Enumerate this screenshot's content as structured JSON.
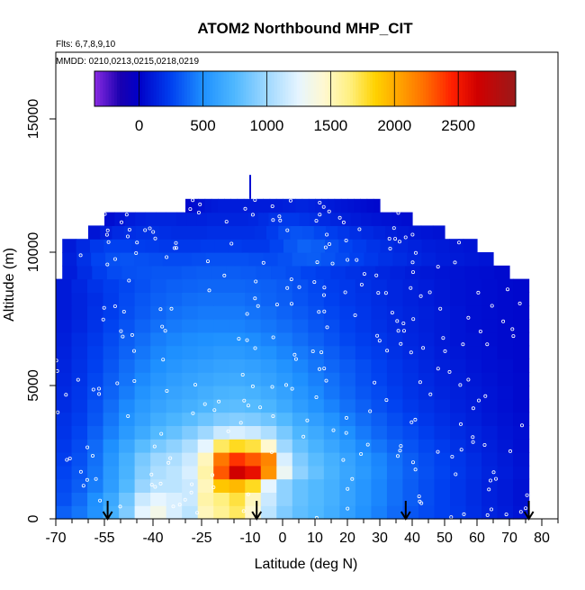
{
  "chart_data": {
    "type": "heatmap",
    "title": "ATOM2 Northbound MHP_CIT",
    "subtitle_flights": "Flts: 6,7,8,9,10",
    "subtitle_dates": "MMDD: 0210,0213,0215,0218,0219",
    "xlabel": "Latitude (deg N)",
    "ylabel": "Altitude (m)",
    "xlim": [
      -70,
      85
    ],
    "ylim": [
      0,
      17500
    ],
    "x_ticks_major": [
      -70,
      -55,
      -40,
      -25,
      -10,
      0,
      10,
      20,
      30,
      40,
      50,
      60,
      70,
      80
    ],
    "x_ticks_minor": [
      -65,
      -60,
      -50,
      -45,
      -35,
      -30,
      -20,
      -15,
      -5,
      5,
      15,
      25,
      35,
      45,
      55,
      65,
      75,
      85
    ],
    "y_ticks": [
      0,
      5000,
      10000,
      15000
    ],
    "colorbar": {
      "min": -350,
      "max": 2950,
      "ticks": [
        0,
        500,
        1000,
        1500,
        2000,
        2500
      ],
      "stops": [
        {
          "v": -350,
          "color": "#8a2be2"
        },
        {
          "v": -150,
          "color": "#1a00b0"
        },
        {
          "v": 0,
          "color": "#0000c8"
        },
        {
          "v": 250,
          "color": "#0040f0"
        },
        {
          "v": 500,
          "color": "#1e90ff"
        },
        {
          "v": 750,
          "color": "#4fb8ff"
        },
        {
          "v": 1000,
          "color": "#9fd8ff"
        },
        {
          "v": 1250,
          "color": "#e6f5ff"
        },
        {
          "v": 1450,
          "color": "#fff8d0"
        },
        {
          "v": 1650,
          "color": "#fff080"
        },
        {
          "v": 1850,
          "color": "#ffd200"
        },
        {
          "v": 2050,
          "color": "#ffa000"
        },
        {
          "v": 2250,
          "color": "#ff6a00"
        },
        {
          "v": 2450,
          "color": "#ff2000"
        },
        {
          "v": 2650,
          "color": "#d00000"
        },
        {
          "v": 2950,
          "color": "#9a1a1a"
        }
      ]
    },
    "altitude_layers": [
      {
        "alt": 500,
        "lat_min": -70,
        "lat_max": 76,
        "values": [
          350,
          420,
          520,
          700,
          900,
          1250,
          1350,
          1200,
          1100,
          1500,
          1600,
          1700,
          1450,
          1100,
          900,
          800,
          750,
          680,
          600,
          520,
          450,
          380,
          320,
          280,
          250,
          220,
          180,
          140,
          110,
          80
        ]
      },
      {
        "alt": 1000,
        "lat_min": -70,
        "lat_max": 76,
        "values": [
          300,
          380,
          500,
          650,
          850,
          1150,
          1250,
          1200,
          1150,
          1550,
          1650,
          1750,
          1500,
          1150,
          950,
          820,
          760,
          700,
          620,
          540,
          470,
          400,
          340,
          290,
          250,
          210,
          170,
          130,
          100,
          70
        ]
      },
      {
        "alt": 1500,
        "lat_min": -70,
        "lat_max": 76,
        "values": [
          280,
          340,
          440,
          580,
          760,
          980,
          1100,
          1100,
          1150,
          1500,
          1900,
          1950,
          1800,
          1250,
          950,
          820,
          760,
          700,
          620,
          540,
          470,
          400,
          340,
          290,
          250,
          210,
          170,
          130,
          100,
          70
        ]
      },
      {
        "alt": 2000,
        "lat_min": -70,
        "lat_max": 76,
        "values": [
          260,
          320,
          420,
          560,
          720,
          920,
          1050,
          1100,
          1200,
          1550,
          2300,
          2650,
          2550,
          2100,
          1300,
          950,
          820,
          720,
          640,
          560,
          480,
          410,
          350,
          300,
          260,
          220,
          180,
          140,
          110,
          80
        ]
      },
      {
        "alt": 2500,
        "lat_min": -70,
        "lat_max": 76,
        "values": [
          240,
          300,
          400,
          540,
          700,
          880,
          1000,
          1050,
          1150,
          1500,
          2200,
          2400,
          2300,
          2150,
          1200,
          900,
          780,
          700,
          620,
          540,
          470,
          400,
          340,
          290,
          250,
          210,
          170,
          130,
          100,
          70
        ]
      },
      {
        "alt": 3000,
        "lat_min": -70,
        "lat_max": 76,
        "values": [
          220,
          280,
          380,
          500,
          640,
          780,
          880,
          950,
          1050,
          1250,
          1700,
          1800,
          1750,
          1450,
          1000,
          820,
          720,
          640,
          560,
          480,
          420,
          360,
          310,
          270,
          230,
          190,
          150,
          120,
          90,
          60
        ]
      },
      {
        "alt": 3500,
        "lat_min": -70,
        "lat_max": 76,
        "values": [
          200,
          260,
          350,
          450,
          560,
          660,
          760,
          820,
          900,
          1000,
          1150,
          1200,
          1150,
          1050,
          880,
          740,
          660,
          580,
          500,
          430,
          370,
          320,
          280,
          240,
          200,
          170,
          140,
          110,
          80,
          60
        ]
      },
      {
        "alt": 4000,
        "lat_min": -70,
        "lat_max": 76,
        "values": [
          190,
          240,
          320,
          420,
          520,
          600,
          680,
          730,
          780,
          840,
          900,
          920,
          900,
          850,
          760,
          660,
          590,
          520,
          450,
          390,
          340,
          290,
          250,
          210,
          180,
          150,
          120,
          90,
          70,
          50
        ]
      },
      {
        "alt": 4500,
        "lat_min": -70,
        "lat_max": 76,
        "values": [
          170,
          220,
          300,
          390,
          480,
          560,
          620,
          660,
          700,
          740,
          780,
          790,
          770,
          730,
          660,
          580,
          520,
          460,
          400,
          350,
          300,
          260,
          220,
          190,
          160,
          130,
          110,
          80,
          60,
          40
        ]
      },
      {
        "alt": 5000,
        "lat_min": -70,
        "lat_max": 76,
        "values": [
          160,
          210,
          280,
          360,
          440,
          520,
          580,
          620,
          650,
          690,
          720,
          730,
          710,
          670,
          610,
          540,
          480,
          420,
          370,
          320,
          280,
          240,
          200,
          170,
          140,
          120,
          100,
          80,
          60,
          40
        ]
      },
      {
        "alt": 5500,
        "lat_min": -70,
        "lat_max": 76,
        "values": [
          150,
          200,
          270,
          340,
          410,
          480,
          540,
          580,
          610,
          640,
          660,
          670,
          650,
          610,
          560,
          500,
          450,
          400,
          350,
          300,
          260,
          220,
          190,
          160,
          130,
          110,
          90,
          70,
          50,
          40
        ]
      },
      {
        "alt": 6000,
        "lat_min": -70,
        "lat_max": 76,
        "values": [
          140,
          190,
          250,
          320,
          390,
          450,
          500,
          540,
          570,
          590,
          610,
          620,
          600,
          570,
          520,
          470,
          420,
          370,
          330,
          290,
          250,
          210,
          180,
          150,
          120,
          100,
          80,
          60,
          50,
          30
        ]
      },
      {
        "alt": 6500,
        "lat_min": -70,
        "lat_max": 76,
        "values": [
          130,
          180,
          240,
          300,
          360,
          420,
          470,
          500,
          520,
          540,
          560,
          560,
          540,
          510,
          470,
          430,
          390,
          340,
          300,
          260,
          230,
          190,
          160,
          140,
          110,
          90,
          70,
          60,
          40,
          30
        ]
      },
      {
        "alt": 7000,
        "lat_min": -70,
        "lat_max": 76,
        "values": [
          120,
          170,
          220,
          280,
          340,
          390,
          440,
          470,
          490,
          500,
          510,
          510,
          490,
          460,
          430,
          390,
          350,
          310,
          270,
          240,
          210,
          180,
          150,
          130,
          100,
          80,
          70,
          50,
          40,
          30
        ]
      },
      {
        "alt": 7500,
        "lat_min": -70,
        "lat_max": 76,
        "values": [
          110,
          150,
          200,
          260,
          310,
          360,
          400,
          430,
          450,
          460,
          460,
          460,
          440,
          420,
          390,
          360,
          320,
          290,
          250,
          220,
          190,
          160,
          140,
          120,
          100,
          80,
          60,
          50,
          40,
          30
        ]
      },
      {
        "alt": 8000,
        "lat_min": -70,
        "lat_max": 76,
        "values": [
          100,
          140,
          190,
          240,
          290,
          330,
          370,
          400,
          420,
          430,
          430,
          430,
          410,
          390,
          360,
          330,
          300,
          270,
          240,
          210,
          180,
          160,
          140,
          120,
          100,
          80,
          60,
          50,
          40,
          30
        ]
      },
      {
        "alt": 8500,
        "lat_min": -70,
        "lat_max": 76,
        "values": [
          100,
          140,
          180,
          230,
          280,
          320,
          350,
          370,
          390,
          400,
          400,
          400,
          380,
          360,
          340,
          310,
          280,
          250,
          220,
          200,
          170,
          150,
          130,
          110,
          90,
          70,
          60,
          50,
          40,
          30
        ]
      },
      {
        "alt": 9000,
        "lat_min": -70,
        "lat_max": 76,
        "values": [
          100,
          150,
          200,
          240,
          270,
          300,
          330,
          350,
          360,
          370,
          370,
          370,
          360,
          350,
          330,
          300,
          270,
          240,
          220,
          190,
          170,
          150,
          130,
          110,
          90,
          70,
          60,
          50,
          40,
          30
        ]
      },
      {
        "alt": 9500,
        "lat_min": -68,
        "lat_max": 70,
        "values": [
          110,
          170,
          240,
          280,
          300,
          310,
          320,
          320,
          330,
          340,
          340,
          340,
          330,
          320,
          310,
          290,
          260,
          240,
          210,
          190,
          170,
          150,
          130,
          110,
          90,
          80,
          70,
          60,
          50,
          40
        ]
      },
      {
        "alt": 10000,
        "lat_min": -68,
        "lat_max": 65,
        "values": [
          120,
          190,
          260,
          300,
          310,
          300,
          290,
          280,
          280,
          290,
          300,
          300,
          300,
          290,
          280,
          300,
          330,
          340,
          310,
          280,
          250,
          220,
          190,
          170,
          150,
          130,
          110,
          100,
          90,
          80
        ]
      },
      {
        "alt": 10500,
        "lat_min": -68,
        "lat_max": 60,
        "values": [
          100,
          160,
          220,
          250,
          250,
          240,
          230,
          220,
          220,
          220,
          230,
          230,
          230,
          220,
          220,
          260,
          320,
          360,
          340,
          300,
          260,
          230,
          200,
          170,
          150,
          130,
          110,
          100,
          90,
          80
        ]
      },
      {
        "alt": 11000,
        "lat_min": -60,
        "lat_max": 50,
        "values": [
          80,
          120,
          160,
          180,
          190,
          190,
          180,
          170,
          170,
          170,
          180,
          180,
          180,
          180,
          190,
          230,
          280,
          310,
          300,
          270,
          240,
          210,
          180,
          160,
          140,
          120,
          100,
          90,
          80,
          70
        ]
      },
      {
        "alt": 11500,
        "lat_min": -55,
        "lat_max": 40,
        "values": [
          50,
          80,
          110,
          130,
          140,
          140,
          140,
          130,
          130,
          130,
          140,
          140,
          140,
          140,
          150,
          170,
          200,
          220,
          220,
          200,
          180,
          160,
          140,
          120,
          100,
          90,
          80,
          70,
          60,
          50
        ]
      },
      {
        "alt": 12000,
        "lat_min": -30,
        "lat_max": 30,
        "values": [
          30,
          50,
          70,
          90,
          100,
          110,
          110,
          110,
          110,
          110,
          110,
          110,
          110,
          110,
          110,
          120,
          130,
          140,
          140,
          130,
          120,
          110,
          100,
          90,
          80,
          70,
          60,
          50,
          40,
          30
        ]
      }
    ],
    "arrow_latitudes": [
      -54,
      -8,
      38,
      76
    ]
  }
}
